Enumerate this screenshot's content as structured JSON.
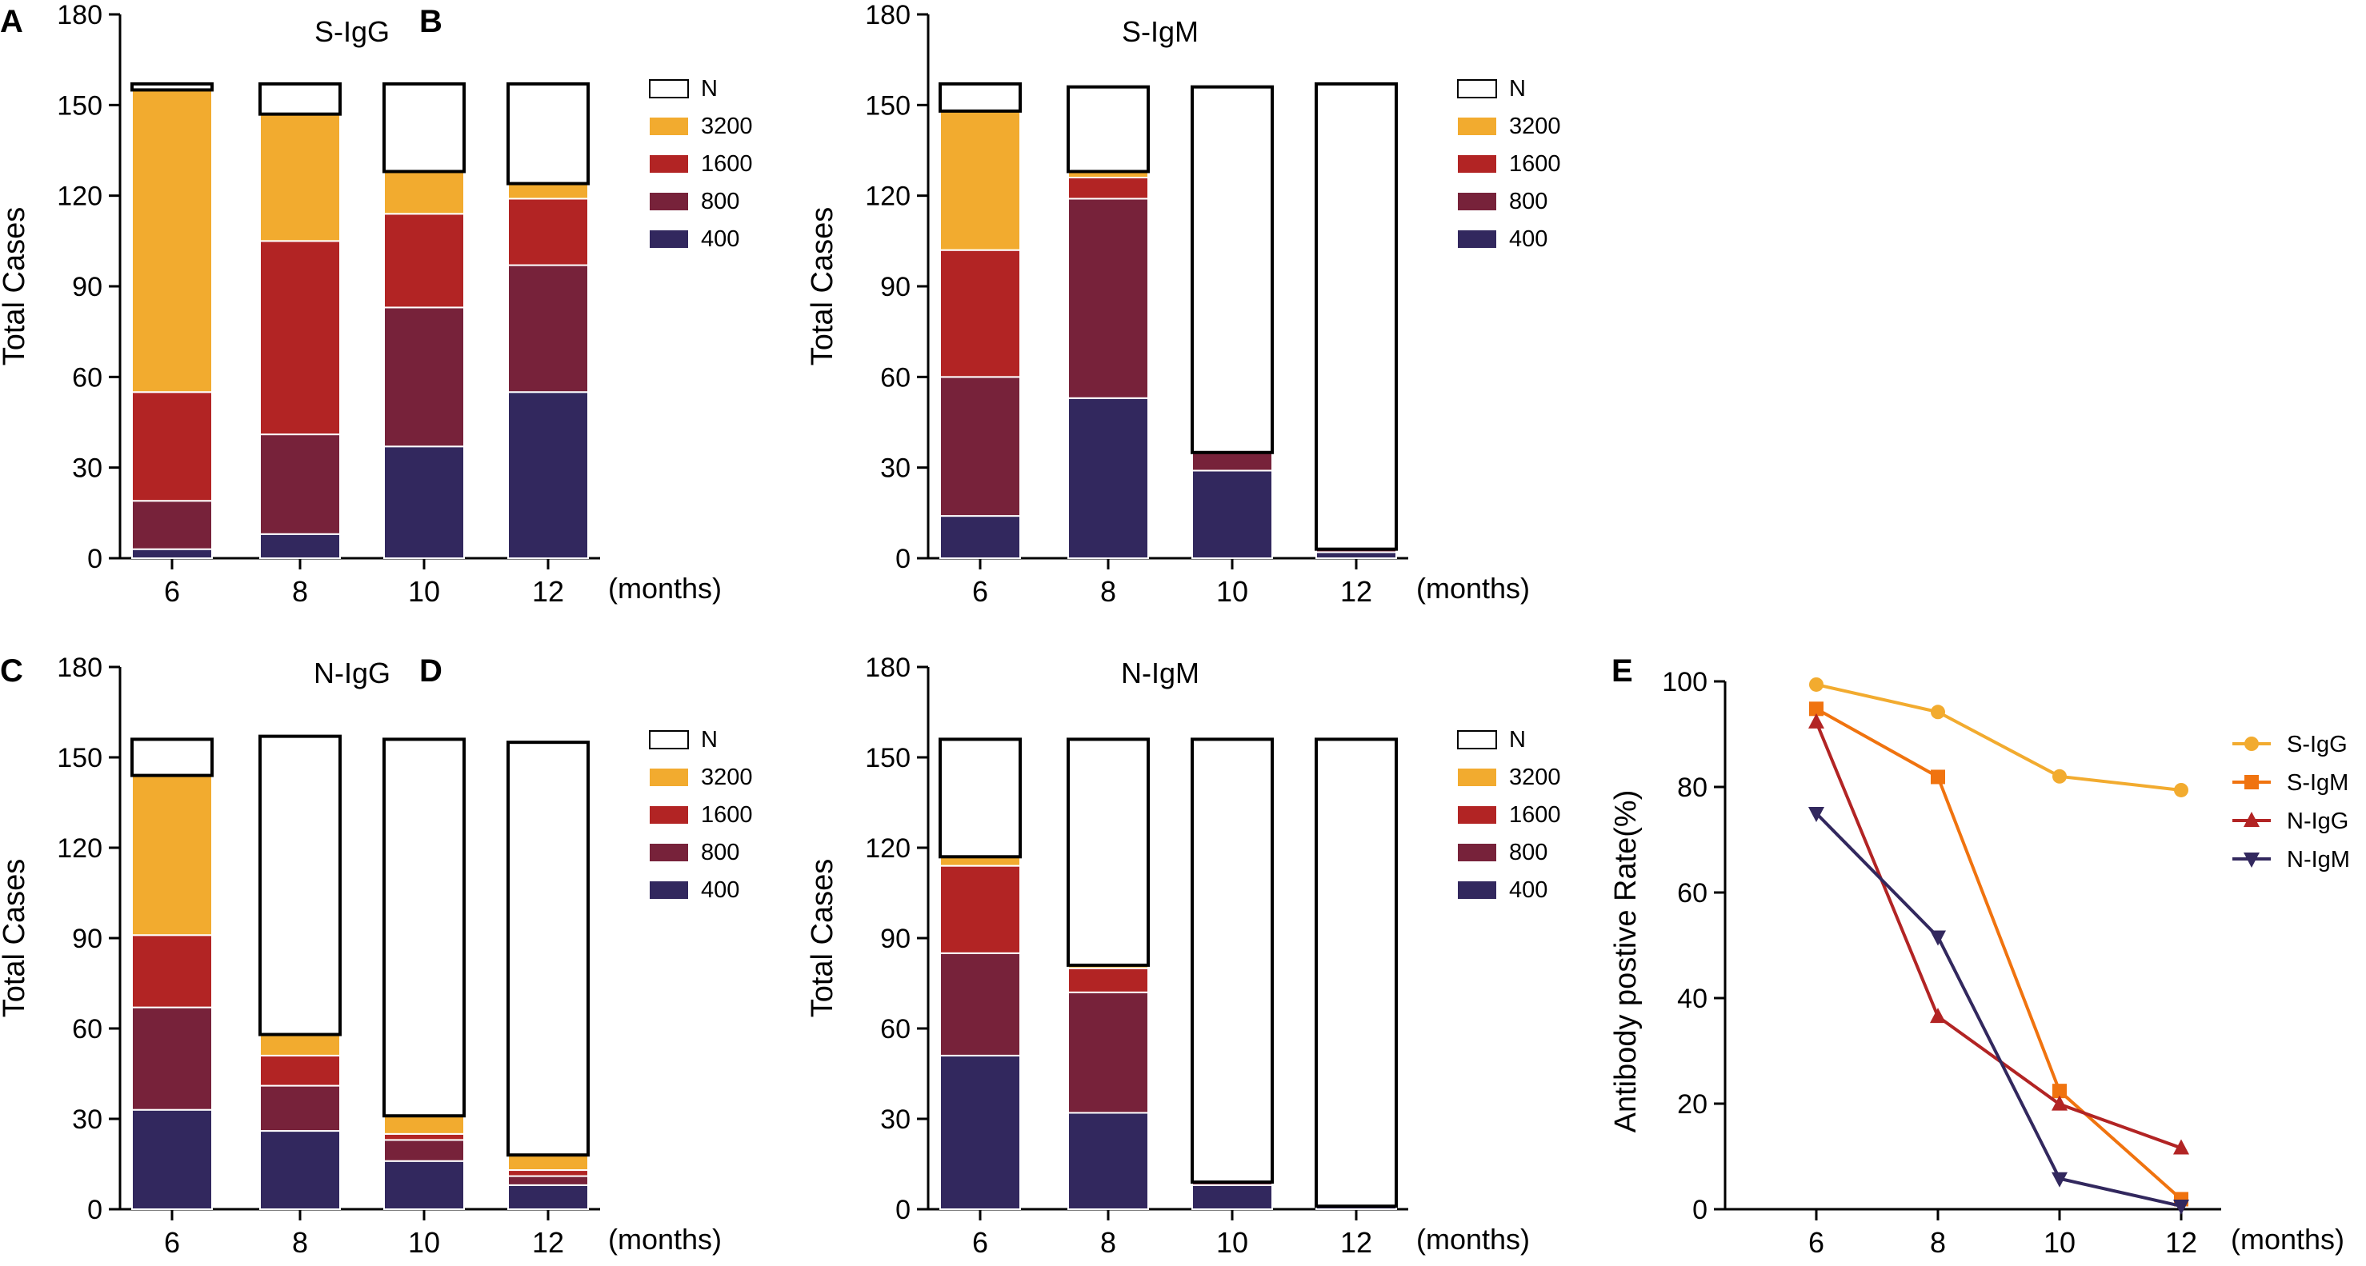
{
  "chart_data": [
    {
      "id": "A",
      "type": "stacked-bar",
      "title": "S-IgG",
      "ylabel": "Total Cases",
      "xunits": "(months)",
      "ylim": [
        0,
        180
      ],
      "yticks": [
        0,
        30,
        60,
        90,
        120,
        150,
        180
      ],
      "categories": [
        "6",
        "8",
        "10",
        "12"
      ],
      "series": [
        {
          "name": "400",
          "color": "#32285e",
          "values": [
            3,
            8,
            37,
            55
          ]
        },
        {
          "name": "800",
          "color": "#77223a",
          "values": [
            16,
            33,
            46,
            42
          ]
        },
        {
          "name": "1600",
          "color": "#b22424",
          "values": [
            36,
            64,
            31,
            22
          ]
        },
        {
          "name": "3200",
          "color": "#f2ab2f",
          "values": [
            100,
            42,
            14,
            5
          ]
        },
        {
          "name": "N",
          "color": "#ffffff",
          "values": [
            2,
            10,
            29,
            33
          ]
        }
      ]
    },
    {
      "id": "B",
      "type": "stacked-bar",
      "title": "S-IgM",
      "ylabel": "Total Cases",
      "xunits": "(months)",
      "ylim": [
        0,
        180
      ],
      "yticks": [
        0,
        30,
        60,
        90,
        120,
        150,
        180
      ],
      "categories": [
        "6",
        "8",
        "10",
        "12"
      ],
      "series": [
        {
          "name": "400",
          "color": "#32285e",
          "values": [
            14,
            53,
            29,
            2
          ]
        },
        {
          "name": "800",
          "color": "#77223a",
          "values": [
            46,
            66,
            6,
            1
          ]
        },
        {
          "name": "1600",
          "color": "#b22424",
          "values": [
            42,
            7,
            0,
            0
          ]
        },
        {
          "name": "3200",
          "color": "#f2ab2f",
          "values": [
            46,
            2,
            0,
            0
          ]
        },
        {
          "name": "N",
          "color": "#ffffff",
          "values": [
            9,
            28,
            121,
            154
          ]
        }
      ]
    },
    {
      "id": "C",
      "type": "stacked-bar",
      "title": "N-IgG",
      "ylabel": "Total Cases",
      "xunits": "(months)",
      "ylim": [
        0,
        180
      ],
      "yticks": [
        0,
        30,
        60,
        90,
        120,
        150,
        180
      ],
      "categories": [
        "6",
        "8",
        "10",
        "12"
      ],
      "series": [
        {
          "name": "400",
          "color": "#32285e",
          "values": [
            33,
            26,
            16,
            8
          ]
        },
        {
          "name": "800",
          "color": "#77223a",
          "values": [
            34,
            15,
            7,
            3
          ]
        },
        {
          "name": "1600",
          "color": "#b22424",
          "values": [
            24,
            10,
            2,
            2
          ]
        },
        {
          "name": "3200",
          "color": "#f2ab2f",
          "values": [
            53,
            7,
            6,
            5
          ]
        },
        {
          "name": "N",
          "color": "#ffffff",
          "values": [
            12,
            99,
            125,
            137
          ]
        }
      ]
    },
    {
      "id": "D",
      "type": "stacked-bar",
      "title": "N-IgM",
      "ylabel": "Total Cases",
      "xunits": "(months)",
      "ylim": [
        0,
        180
      ],
      "yticks": [
        0,
        30,
        60,
        90,
        120,
        150,
        180
      ],
      "categories": [
        "6",
        "8",
        "10",
        "12"
      ],
      "series": [
        {
          "name": "400",
          "color": "#32285e",
          "values": [
            51,
            32,
            8,
            1
          ]
        },
        {
          "name": "800",
          "color": "#77223a",
          "values": [
            34,
            40,
            1,
            0
          ]
        },
        {
          "name": "1600",
          "color": "#b22424",
          "values": [
            29,
            8,
            0,
            0
          ]
        },
        {
          "name": "3200",
          "color": "#f2ab2f",
          "values": [
            3,
            1,
            0,
            0
          ]
        },
        {
          "name": "N",
          "color": "#ffffff",
          "values": [
            39,
            75,
            147,
            155
          ]
        }
      ]
    },
    {
      "id": "E",
      "type": "line",
      "title": "",
      "ylabel": "Antibody postive Rate(%)",
      "xunits": "(months)",
      "ylim": [
        0,
        100
      ],
      "yticks": [
        0,
        20,
        40,
        60,
        80,
        100
      ],
      "x": [
        6,
        8,
        10,
        12
      ],
      "series": [
        {
          "name": "S-IgG",
          "color": "#f2ab2f",
          "marker": "circle",
          "values": [
            99.4,
            94.2,
            82.0,
            79.4
          ]
        },
        {
          "name": "S-IgM",
          "color": "#f0730f",
          "marker": "square",
          "values": [
            94.8,
            81.9,
            22.4,
            1.9
          ]
        },
        {
          "name": "N-IgG",
          "color": "#b22424",
          "marker": "triangle",
          "values": [
            92.3,
            36.5,
            19.9,
            11.6
          ]
        },
        {
          "name": "N-IgM",
          "color": "#32285e",
          "marker": "triangle-down",
          "values": [
            75.0,
            51.6,
            5.8,
            0.6
          ]
        }
      ]
    }
  ]
}
